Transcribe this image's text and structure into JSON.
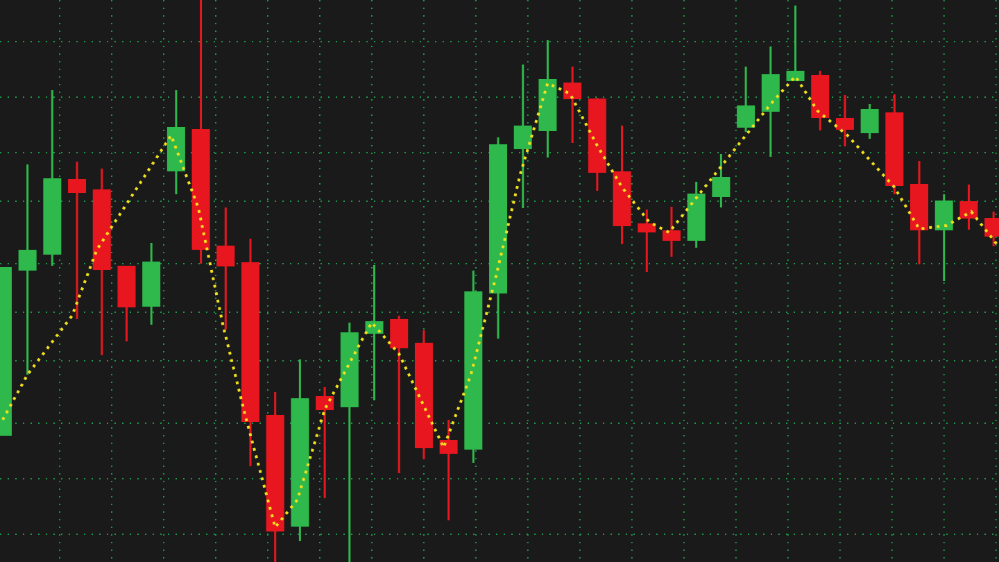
{
  "chart_data": {
    "type": "candlestick",
    "open": [
      182,
      420,
      443,
      552,
      537,
      427,
      368,
      563,
      624,
      456,
      432,
      212,
      51,
      239,
      223,
      329,
      350,
      316,
      176,
      162,
      387,
      595,
      621,
      691,
      668,
      563,
      488,
      478,
      463,
      526,
      626,
      649,
      693,
      702,
      640,
      618,
      648,
      545,
      478,
      520,
      496
    ],
    "high": [
      425,
      573,
      680,
      577,
      567,
      427,
      460,
      680,
      810,
      511,
      466,
      245,
      292,
      252,
      345,
      428,
      355,
      334,
      205,
      420,
      612,
      717,
      752,
      714,
      669,
      629,
      508,
      512,
      548,
      588,
      714,
      743,
      802,
      708,
      673,
      660,
      674,
      578,
      530,
      544,
      505
    ],
    "low": [
      182,
      270,
      427,
      350,
      298,
      318,
      342,
      530,
      430,
      335,
      138,
      0,
      30,
      92,
      0,
      233,
      128,
      148,
      60,
      143,
      322,
      510,
      583,
      604,
      535,
      458,
      418,
      440,
      453,
      511,
      620,
      584,
      693,
      622,
      599,
      610,
      530,
      429,
      405,
      479,
      455
    ],
    "close": [
      425,
      450,
      553,
      532,
      421,
      367,
      433,
      627,
      450,
      426,
      202,
      44,
      236,
      219,
      331,
      347,
      308,
      164,
      156,
      390,
      602,
      629,
      696,
      667,
      561,
      484,
      475,
      463,
      531,
      555,
      658,
      703,
      708,
      640,
      623,
      653,
      542,
      478,
      521,
      495,
      469
    ],
    "up_color": "#2fb84b",
    "down_color": "#e8171f",
    "overlay": {
      "type": "line",
      "color": "#f2e21c",
      "x": [
        0,
        1,
        2.8,
        3.8,
        6.8,
        7.9,
        8.9,
        9.8,
        11,
        11.9,
        13,
        14.5,
        14.9,
        16,
        17,
        17.8,
        18.9,
        19.9,
        20.9,
        22,
        22.9,
        24,
        25,
        26.1,
        26.9,
        29,
        31,
        32,
        32.9,
        34.1,
        36,
        37,
        38.1,
        39.1,
        40.2
      ],
      "values": [
        205,
        270,
        355,
        450,
        615,
        510,
        340,
        210,
        50,
        90,
        220,
        320,
        345,
        300,
        225,
        165,
        270,
        410,
        560,
        690,
        675,
        600,
        540,
        490,
        475,
        570,
        660,
        700,
        650,
        615,
        540,
        480,
        485,
        505,
        455
      ]
    },
    "xlim": [
      -0.11,
      40.22
    ],
    "ylim": [
      0,
      810
    ],
    "xticks": [
      2.3,
      4.4,
      6.5,
      8.6,
      10.7,
      12.8,
      14.9,
      17.0,
      19.1,
      21.2,
      23.3,
      25.4,
      27.5,
      29.6,
      31.7,
      33.8,
      35.9,
      38.0,
      40.1
    ],
    "yticks": [
      40,
      120,
      200,
      290,
      360,
      430,
      520,
      590,
      670,
      750
    ],
    "grid": true,
    "grid_color": "#1e9a4c"
  }
}
